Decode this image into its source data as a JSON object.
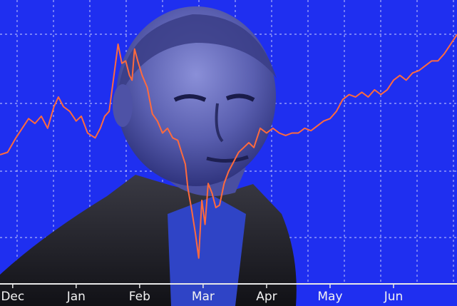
{
  "colors": {
    "background": "#1f2ff0",
    "grid": "#d9dcff",
    "line": "#ff6a3d",
    "axis": "#e8e8e8",
    "label": "#f2f2f2"
  },
  "figure": {
    "subject": "portrait-illustration-icon"
  },
  "chart_data": {
    "type": "line",
    "title": "",
    "xlabel": "",
    "ylabel": "",
    "grid": true,
    "legend": "none",
    "x_tick_labels": [
      "Dec",
      "Jan",
      "Feb",
      "Mar",
      "Apr",
      "May",
      "Jun"
    ],
    "x_tick_positions": [
      0,
      1,
      2,
      3,
      4,
      5,
      6
    ],
    "xlim": [
      -0.2,
      7.0
    ],
    "ylim": [
      0,
      100
    ],
    "series": [
      {
        "name": "",
        "x": [
          -0.2,
          -0.08,
          0.05,
          0.15,
          0.25,
          0.35,
          0.45,
          0.55,
          0.65,
          0.72,
          0.8,
          0.9,
          1.0,
          1.08,
          1.18,
          1.3,
          1.38,
          1.45,
          1.52,
          1.6,
          1.66,
          1.72,
          1.78,
          1.84,
          1.88,
          1.92,
          1.97,
          2.04,
          2.12,
          2.2,
          2.28,
          2.36,
          2.44,
          2.52,
          2.6,
          2.66,
          2.72,
          2.76,
          2.82,
          2.88,
          2.93,
          2.98,
          3.03,
          3.08,
          3.14,
          3.2,
          3.26,
          3.33,
          3.4,
          3.48,
          3.56,
          3.64,
          3.72,
          3.8,
          3.9,
          4.0,
          4.1,
          4.2,
          4.3,
          4.4,
          4.5,
          4.6,
          4.7,
          4.8,
          4.9,
          5.0,
          5.1,
          5.2,
          5.3,
          5.4,
          5.5,
          5.6,
          5.7,
          5.8,
          5.9,
          6.0,
          6.1,
          6.2,
          6.3,
          6.4,
          6.5,
          6.6,
          6.7,
          6.8,
          6.9,
          7.0
        ],
        "y": [
          49,
          50,
          56,
          60,
          64,
          62,
          65,
          60,
          69,
          73,
          69,
          67,
          63,
          65,
          58,
          56,
          60,
          65,
          67,
          83,
          95,
          87,
          88,
          82,
          80,
          93,
          88,
          82,
          77,
          66,
          63,
          58,
          60,
          56,
          55,
          50,
          45,
          35,
          26,
          16,
          6,
          30,
          20,
          37,
          33,
          27,
          28,
          37,
          42,
          46,
          50,
          52,
          54,
          52,
          60,
          58,
          60,
          58,
          57,
          58,
          58,
          60,
          59,
          61,
          63,
          64,
          67,
          72,
          74,
          73,
          75,
          73,
          76,
          74,
          76,
          80,
          82,
          80,
          83,
          84,
          86,
          88,
          88,
          91,
          95,
          99
        ]
      }
    ]
  }
}
